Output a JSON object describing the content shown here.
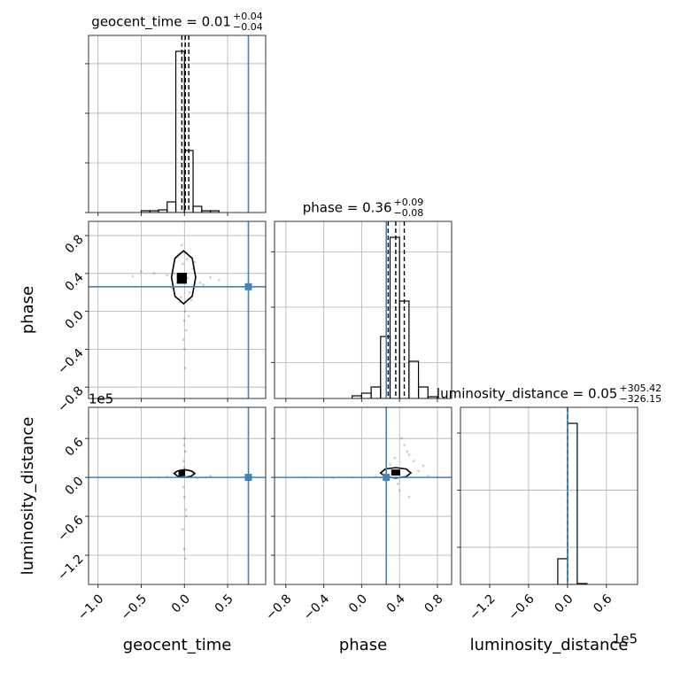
{
  "chart_data": [
    {
      "type": "histogram",
      "title": "geocent_time = 0.01",
      "title_plus": "+0.04",
      "title_minus": "−0.04",
      "bins": [
        -0.5,
        -0.4,
        -0.3,
        -0.2,
        -0.1,
        0,
        0.1,
        0.2,
        0.3,
        0.4
      ],
      "values": [
        36,
        36,
        54,
        214,
        3250,
        1250,
        125,
        36,
        36
      ],
      "color": "#000000",
      "quantiles": [
        -0.03,
        0.01,
        0.05
      ],
      "truth": 0.74,
      "truth_color": "#4682b4",
      "xlim": [
        -1.11,
        0.94
      ],
      "xticks": [
        {
          "value": -1.0,
          "label": "−1.0"
        },
        {
          "value": -0.5,
          "label": "−0.5"
        },
        {
          "value": 0,
          "label": "0.0"
        },
        0.5
      ],
      "ylim": [
        0,
        3570
      ],
      "yticks": [
        0,
        1000,
        2000,
        3000
      ],
      "show_xticklabels": false,
      "show_yticklabels": false,
      "grid": true
    },
    {
      "type": "scatter",
      "ylabel": "phase",
      "x": [
        -0.02,
        0.03,
        -0.08,
        0.06,
        -0.12,
        0.1,
        -0.05,
        0.01,
        0.0,
        0.02,
        -0.01,
        0.0,
        -0.03,
        0.04,
        -0.2,
        0.18,
        -0.35,
        0.3,
        -0.5,
        0.4,
        -0.6,
        0.05,
        -0.04,
        0.0,
        0.01,
        -0.15,
        0.12,
        -0.07,
        0.08,
        0.22
      ],
      "y": [
        0.5,
        0.55,
        0.3,
        0.2,
        0.4,
        0.45,
        0.1,
        0.0,
        -0.1,
        -0.2,
        -0.3,
        0.62,
        0.7,
        0.35,
        0.38,
        0.3,
        0.4,
        0.36,
        0.42,
        0.33,
        0.37,
        -0.05,
        0.15,
        -0.4,
        -0.6,
        0.25,
        0.52,
        0.6,
        0.12,
        0.28
      ],
      "contours": [
        {
          "x": [
            0.13,
            0.09,
            -0.01,
            -0.11,
            -0.15,
            -0.11,
            -0.01,
            0.09
          ],
          "y": [
            0.36,
            0.56,
            0.64,
            0.56,
            0.36,
            0.16,
            0.08,
            0.16
          ],
          "filled": false
        },
        {
          "x": [
            0.02,
            0.02,
            -0.08,
            -0.08
          ],
          "y": [
            0.4,
            0.3,
            0.3,
            0.4
          ],
          "filled": true
        }
      ],
      "truth_x": 0.74,
      "truth_y": 0.26,
      "truth_color": "#4682b4",
      "xlim": [
        -1.11,
        0.94
      ],
      "xticks": [
        {
          "value": -1.0,
          "label": "−1.0"
        },
        {
          "value": -0.5,
          "label": "−0.5"
        },
        {
          "value": 0,
          "label": "0.0"
        },
        0.5
      ],
      "ylim": [
        -0.92,
        0.95
      ],
      "yticks": [
        {
          "value": -0.8,
          "label": "−0.8"
        },
        {
          "value": -0.4,
          "label": "−0.4"
        },
        {
          "value": 0,
          "label": "0.0"
        },
        0.4,
        0.8
      ],
      "show_xticklabels": false,
      "show_yticklabels": true,
      "grid": true
    },
    {
      "type": "histogram",
      "title": "phase = 0.36",
      "title_plus": "+0.09",
      "title_minus": "−0.08",
      "bins": [
        -0.1,
        0,
        0.1,
        0.2,
        0.3,
        0.4,
        0.5,
        0.6,
        0.7,
        0.8
      ],
      "values": [
        48,
        96,
        208,
        1120,
        2912,
        1760,
        672,
        208,
        32
      ],
      "color": "#000000",
      "quantiles": [
        0.28,
        0.36,
        0.45
      ],
      "truth": 0.26,
      "truth_color": "#4682b4",
      "xlim": [
        -0.92,
        0.95
      ],
      "xticks": [
        {
          "value": -0.8,
          "label": "−0.8"
        },
        {
          "value": -0.4,
          "label": "−0.4"
        },
        {
          "value": 0,
          "label": "0.0"
        },
        0.4,
        0.8
      ],
      "ylim": [
        0,
        3200
      ],
      "yticks": [
        650,
        1650,
        2650
      ],
      "show_xticklabels": false,
      "show_yticklabels": false,
      "grid": true
    },
    {
      "type": "scatter",
      "xlabel": "geocent_time",
      "ylabel": "luminosity_distance",
      "y_offset_text": "1e5",
      "x": [
        0.0,
        0.01,
        -0.01,
        0.0,
        0.02,
        -0.02,
        0.0,
        0.01,
        -0.3,
        -0.2,
        0.15,
        0.25,
        -0.1,
        0.1,
        -0.4,
        0.3,
        0.0,
        -0.01,
        0.02,
        0.0
      ],
      "y": [
        0.6,
        0.4,
        0.25,
        -0.3,
        -0.5,
        -0.8,
        -1.1,
        -1.25,
        0.0,
        0.01,
        -0.01,
        0.0,
        0.05,
        0.08,
        0.0,
        0.02,
        0.15,
        -0.15,
        -0.6,
        0.5
      ],
      "contours": [
        {
          "x": [
            0.12,
            0.08,
            0,
            -0.08,
            -0.12,
            -0.08,
            0,
            0.08
          ],
          "y": [
            0.06,
            0.1,
            0.12,
            0.1,
            0.06,
            0.02,
            0.0,
            0.02
          ],
          "filled": false
        },
        {
          "x": [
            -0.06,
            0.0,
            0.0,
            -0.06
          ],
          "y": [
            0.1,
            0.1,
            0.03,
            0.03
          ],
          "filled": true
        }
      ],
      "truth_x": 0.74,
      "truth_y": 0.0,
      "truth_color": "#4682b4",
      "xlim": [
        -1.11,
        0.94
      ],
      "xticks": [
        {
          "value": -1.0,
          "label": "−1.0"
        },
        {
          "value": -0.5,
          "label": "−0.5"
        },
        {
          "value": 0,
          "label": "0.0"
        },
        0.5
      ],
      "ylim": [
        -1.65,
        1.08
      ],
      "yticks": [
        {
          "value": -1.2,
          "label": "−1.2"
        },
        {
          "value": -0.6,
          "label": "−0.6"
        },
        {
          "value": 0,
          "label": "0.0"
        },
        0.6
      ],
      "show_xticklabels": true,
      "show_yticklabels": true,
      "grid": true
    },
    {
      "type": "scatter",
      "xlabel": "phase",
      "x": [
        0.3,
        0.45,
        0.5,
        0.55,
        0.6,
        0.4,
        0.2,
        0.15,
        -0.1,
        -0.3,
        -0.6,
        0.7,
        0.8,
        0.35,
        0.42,
        0.5,
        0.25,
        0.48,
        0.38,
        0.65
      ],
      "y": [
        0.2,
        0.5,
        0.35,
        0.25,
        0.1,
        -0.2,
        0.0,
        0.01,
        0.0,
        -0.01,
        0.0,
        0.02,
        0.0,
        0.3,
        0.6,
        -0.3,
        0.12,
        0.4,
        -0.1,
        0.18
      ],
      "contours": [
        {
          "x": [
            0.52,
            0.47,
            0.36,
            0.25,
            0.2,
            0.25,
            0.36,
            0.47
          ],
          "y": [
            0.07,
            0.13,
            0.15,
            0.13,
            0.07,
            0.01,
            -0.01,
            0.01
          ],
          "filled": false
        },
        {
          "x": [
            0.32,
            0.4,
            0.4,
            0.32
          ],
          "y": [
            0.11,
            0.11,
            0.04,
            0.04
          ],
          "filled": true
        }
      ],
      "truth_x": 0.26,
      "truth_y": 0.0,
      "truth_color": "#4682b4",
      "xlim": [
        -0.92,
        0.95
      ],
      "xticks": [
        {
          "value": -0.8,
          "label": "−0.8"
        },
        {
          "value": -0.4,
          "label": "−0.4"
        },
        {
          "value": 0,
          "label": "0.0"
        },
        0.4,
        0.8
      ],
      "ylim": [
        -1.65,
        1.08
      ],
      "yticks": [
        {
          "value": -1.2,
          "label": "−1.2"
        },
        {
          "value": -0.6,
          "label": "−0.6"
        },
        {
          "value": 0,
          "label": "0.0"
        },
        0.6
      ],
      "show_xticklabels": true,
      "show_yticklabels": false,
      "grid": true
    },
    {
      "type": "histogram",
      "title": "luminosity_distance = 0.05",
      "title_plus": "+305.42",
      "title_minus": "−326.15",
      "xlabel": "luminosity_distance",
      "x_offset_text": "1e5",
      "bins": [
        -0.15,
        0,
        0.15,
        0.3
      ],
      "values": [
        450,
        2820,
        16
      ],
      "color": "#000000",
      "quantiles": [
        -0.0033,
        5e-07,
        0.0031
      ],
      "truth": 0.0,
      "truth_color": "#4682b4",
      "xlim": [
        -1.65,
        1.08
      ],
      "xticks": [
        {
          "value": -1.2,
          "label": "−1.2"
        },
        {
          "value": -0.6,
          "label": "−0.6"
        },
        {
          "value": 0,
          "label": "0.0"
        },
        0.6
      ],
      "ylim": [
        0,
        3100
      ],
      "yticks": [
        650,
        1650,
        2650
      ],
      "show_xticklabels": true,
      "show_yticklabels": false,
      "grid": true
    }
  ]
}
